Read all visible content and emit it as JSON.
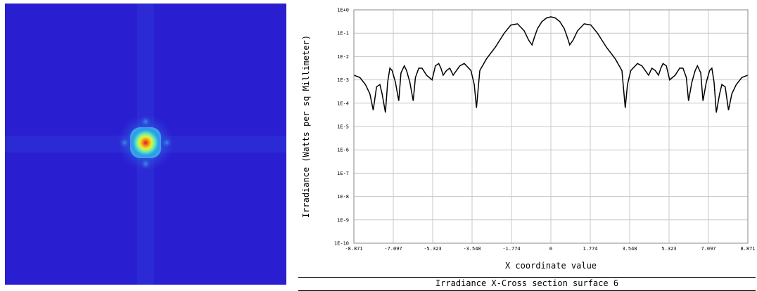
{
  "heatmap": {
    "background_color": "#2a1fd0",
    "colors": [
      "#2a1fd0",
      "#2d60e8",
      "#36b6ea",
      "#6ef0a0",
      "#e6f23a",
      "#f39a1c",
      "#e31a1a"
    ]
  },
  "chart_data": {
    "type": "line",
    "title": "Irradiance X-Cross section surface 6",
    "xlabel": "X coordinate value",
    "ylabel": "Irradiance (Watts per sq Millimeter)",
    "xlim": [
      -8.871,
      8.871
    ],
    "ylim_log10": [
      -10,
      0
    ],
    "y_scale": "log",
    "grid": true,
    "line_color": "#000000",
    "x_tick_labels": [
      "-8.871",
      "-7.097",
      "-5.323",
      "-3.548",
      "-1.774",
      "0",
      "1.774",
      "3.548",
      "5.323",
      "7.097",
      "8.871"
    ],
    "y_tick_labels": [
      "1E+0",
      "1E-1",
      "1E-2",
      "1E-3",
      "1E-4",
      "1E-5",
      "1E-6",
      "1E-7",
      "1E-8",
      "1E-9",
      "1E-10"
    ],
    "series": [
      {
        "x": [
          -8.871,
          -8.6,
          -8.35,
          -8.15,
          -8.0,
          -7.85,
          -7.7,
          -7.6,
          -7.45,
          -7.35,
          -7.25,
          -7.15,
          -7.0,
          -6.85,
          -6.75,
          -6.6,
          -6.5,
          -6.35,
          -6.2,
          -6.1,
          -5.95,
          -5.8,
          -5.6,
          -5.35,
          -5.2,
          -5.05,
          -4.95,
          -4.85,
          -4.7,
          -4.55,
          -4.4,
          -4.25,
          -4.1,
          -3.9,
          -3.6,
          -3.45,
          -3.35,
          -3.2,
          -2.9,
          -2.5,
          -2.1,
          -1.8,
          -1.5,
          -1.2,
          -1.0,
          -0.85,
          -0.75,
          -0.6,
          -0.4,
          -0.2,
          0,
          0.2,
          0.4,
          0.6,
          0.75,
          0.85,
          1.0,
          1.2,
          1.5,
          1.8,
          2.1,
          2.5,
          2.9,
          3.2,
          3.35,
          3.45,
          3.6,
          3.9,
          4.1,
          4.25,
          4.4,
          4.55,
          4.7,
          4.85,
          4.95,
          5.05,
          5.2,
          5.35,
          5.6,
          5.8,
          5.95,
          6.1,
          6.2,
          6.35,
          6.5,
          6.6,
          6.75,
          6.85,
          7.0,
          7.15,
          7.25,
          7.35,
          7.45,
          7.6,
          7.7,
          7.85,
          8.0,
          8.15,
          8.35,
          8.6,
          8.871
        ],
        "y_log10": [
          -2.8,
          -2.9,
          -3.2,
          -3.6,
          -4.3,
          -3.3,
          -3.2,
          -3.6,
          -4.4,
          -3.1,
          -2.5,
          -2.6,
          -3.1,
          -3.9,
          -2.7,
          -2.4,
          -2.6,
          -3.1,
          -3.9,
          -2.9,
          -2.5,
          -2.5,
          -2.8,
          -3.0,
          -2.4,
          -2.3,
          -2.5,
          -2.8,
          -2.6,
          -2.5,
          -2.8,
          -2.6,
          -2.4,
          -2.3,
          -2.6,
          -3.2,
          -4.2,
          -2.6,
          -2.1,
          -1.6,
          -1.0,
          -0.65,
          -0.6,
          -0.9,
          -1.3,
          -1.5,
          -1.2,
          -0.8,
          -0.5,
          -0.35,
          -0.3,
          -0.35,
          -0.5,
          -0.8,
          -1.2,
          -1.5,
          -1.3,
          -0.9,
          -0.6,
          -0.65,
          -1.0,
          -1.6,
          -2.1,
          -2.6,
          -4.2,
          -3.2,
          -2.6,
          -2.3,
          -2.4,
          -2.6,
          -2.8,
          -2.5,
          -2.6,
          -2.8,
          -2.5,
          -2.3,
          -2.4,
          -3.0,
          -2.8,
          -2.5,
          -2.5,
          -2.9,
          -3.9,
          -3.1,
          -2.6,
          -2.4,
          -2.7,
          -3.9,
          -3.1,
          -2.6,
          -2.5,
          -3.1,
          -4.4,
          -3.6,
          -3.2,
          -3.3,
          -4.3,
          -3.6,
          -3.2,
          -2.9,
          -2.8
        ]
      }
    ]
  }
}
